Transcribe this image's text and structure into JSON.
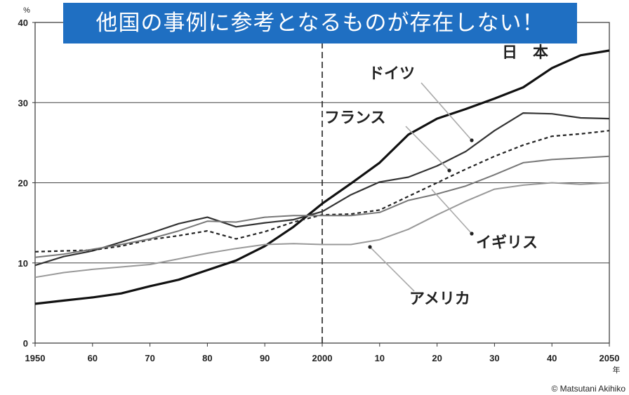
{
  "banner": {
    "text": "他国の事例に参考となるものが存在しない！"
  },
  "credit": "© Matsutani Akihiko",
  "chart_data": {
    "type": "line",
    "y_unit": "%",
    "x_unit": "年",
    "ylim": [
      0,
      40
    ],
    "xlim": [
      1950,
      2050
    ],
    "y_ticks": [
      "0",
      "10",
      "20",
      "30",
      "40"
    ],
    "x_ticks": [
      {
        "v": 1950,
        "label": "1950"
      },
      {
        "v": 1960,
        "label": "60"
      },
      {
        "v": 1970,
        "label": "70"
      },
      {
        "v": 1980,
        "label": "80"
      },
      {
        "v": 1990,
        "label": "90"
      },
      {
        "v": 2000,
        "label": "2000"
      },
      {
        "v": 2010,
        "label": "10"
      },
      {
        "v": 2020,
        "label": "20"
      },
      {
        "v": 2030,
        "label": "30"
      },
      {
        "v": 2040,
        "label": "40"
      },
      {
        "v": 2050,
        "label": "2050"
      }
    ],
    "gridlines_y": [
      10,
      20,
      30
    ],
    "vline": 2000,
    "x": [
      1950,
      1955,
      1960,
      1965,
      1970,
      1975,
      1980,
      1985,
      1990,
      1995,
      2000,
      2005,
      2010,
      2015,
      2020,
      2025,
      2030,
      2035,
      2040,
      2045,
      2050
    ],
    "series": [
      {
        "name": "日　本",
        "color": "#111111",
        "width": 3.2,
        "dash": "",
        "values": [
          4.9,
          5.3,
          5.7,
          6.2,
          7.1,
          7.9,
          9.1,
          10.3,
          12.1,
          14.5,
          17.4,
          19.9,
          22.5,
          26.0,
          28.0,
          29.2,
          30.5,
          31.9,
          34.3,
          35.9,
          36.5
        ]
      },
      {
        "name": "ドイツ",
        "color": "#333333",
        "width": 2.2,
        "dash": "",
        "values": [
          9.7,
          10.8,
          11.5,
          12.6,
          13.7,
          14.9,
          15.7,
          14.5,
          15.0,
          15.4,
          16.4,
          18.5,
          20.1,
          20.7,
          22.1,
          23.9,
          26.5,
          28.7,
          28.6,
          28.1,
          28.0
        ]
      },
      {
        "name": "フランス",
        "color": "#222222",
        "width": 2.2,
        "dash": "5,4",
        "values": [
          11.4,
          11.5,
          11.6,
          12.1,
          12.9,
          13.4,
          14.0,
          13.0,
          13.9,
          15.1,
          16.0,
          16.1,
          16.6,
          18.3,
          20.0,
          21.7,
          23.3,
          24.7,
          25.8,
          26.1,
          26.5
        ]
      },
      {
        "name": "イギリス",
        "color": "#777777",
        "width": 2.0,
        "dash": "",
        "values": [
          10.7,
          11.1,
          11.7,
          12.3,
          13.0,
          14.0,
          15.2,
          15.1,
          15.7,
          15.9,
          15.9,
          15.9,
          16.3,
          17.8,
          18.6,
          19.6,
          21.0,
          22.5,
          22.9,
          23.1,
          23.3
        ]
      },
      {
        "name": "アメリカ",
        "color": "#999999",
        "width": 2.0,
        "dash": "",
        "values": [
          8.2,
          8.8,
          9.2,
          9.5,
          9.8,
          10.5,
          11.2,
          11.8,
          12.3,
          12.4,
          12.3,
          12.3,
          12.9,
          14.2,
          16.0,
          17.7,
          19.2,
          19.7,
          20.0,
          19.8,
          20.0
        ]
      }
    ],
    "labels": [
      {
        "series": "日　本",
        "text": "日　本"
      },
      {
        "series": "ドイツ",
        "text": "ドイツ"
      },
      {
        "series": "フランス",
        "text": "フランス"
      },
      {
        "series": "イギリス",
        "text": "イギリス"
      },
      {
        "series": "アメリカ",
        "text": "アメリカ"
      }
    ]
  }
}
